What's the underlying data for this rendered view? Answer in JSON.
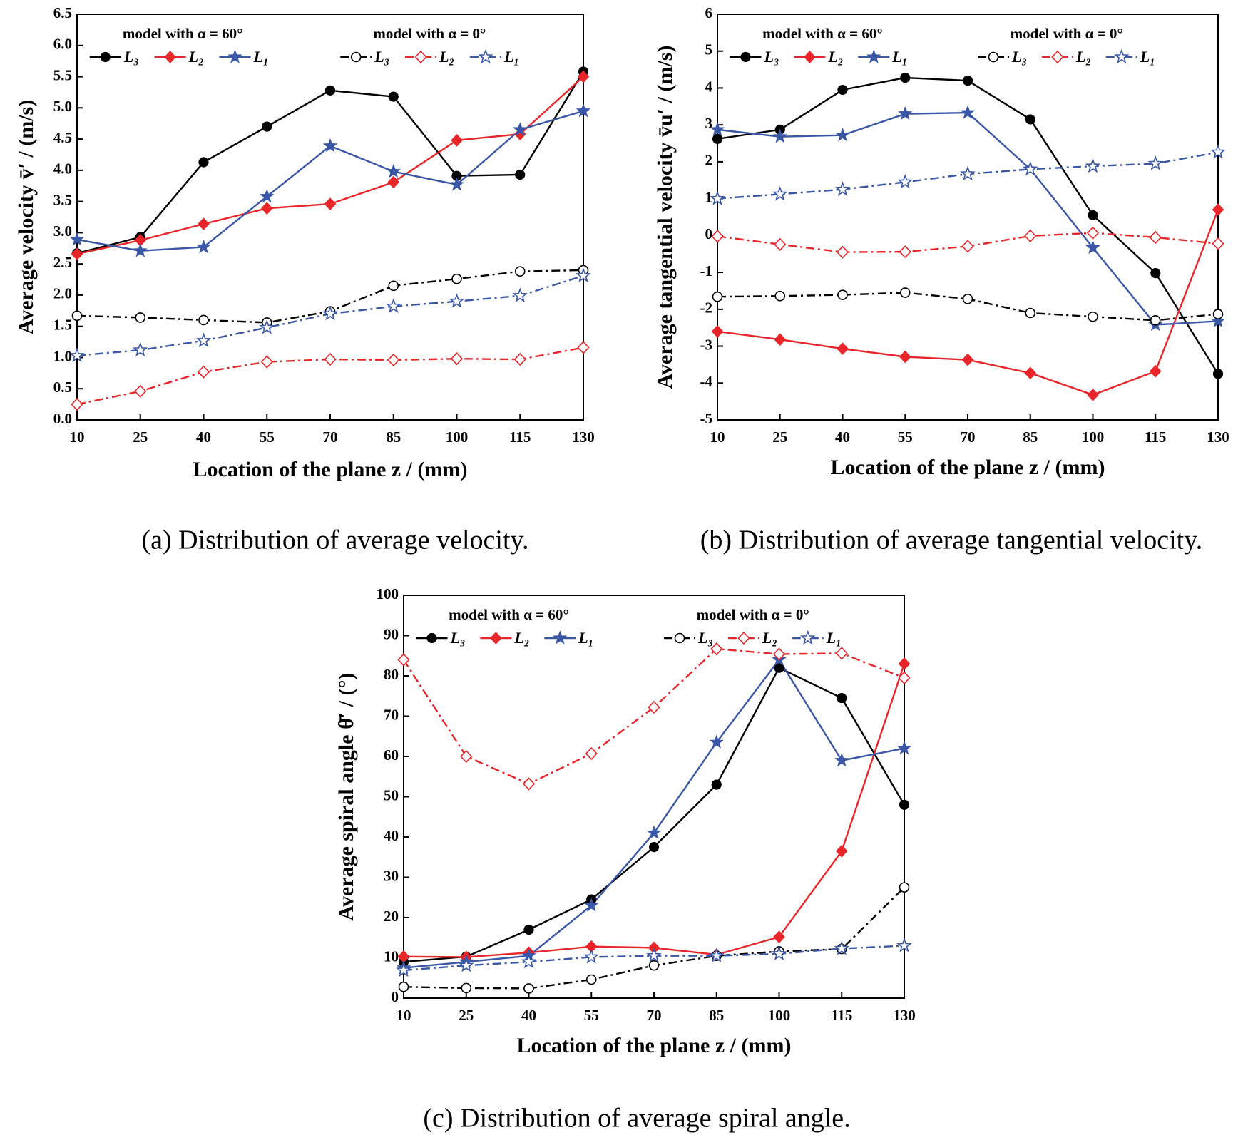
{
  "chart_data": [
    {
      "type": "line",
      "caption": "(a) Distribution of average velocity.",
      "x_label": "Location of the plane z / (mm)",
      "y_label": "Average velocity v̄′ / (m/s)",
      "x": [
        10,
        25,
        40,
        55,
        70,
        85,
        100,
        115,
        130
      ],
      "xlim": [
        10,
        130
      ],
      "xticks": [
        10,
        25,
        40,
        55,
        70,
        85,
        100,
        115,
        130
      ],
      "ylim": [
        0,
        6.5
      ],
      "yticks": [
        {
          "value": 0,
          "label": "0.0"
        },
        0.5,
        {
          "value": 1,
          "label": "1.0"
        },
        1.5,
        {
          "value": 2,
          "label": "2.0"
        },
        2.5,
        {
          "value": 3,
          "label": "3.0"
        },
        3.5,
        {
          "value": 4,
          "label": "4.0"
        },
        4.5,
        {
          "value": 5,
          "label": "5.0"
        },
        5.5,
        {
          "value": 6,
          "label": "6.0"
        },
        6.5
      ],
      "legend_groups": [
        "model with α = 60°",
        "model with α = 0°"
      ],
      "series": [
        {
          "name": "L₃",
          "group": 0,
          "color": "#000000",
          "marker": "filled-circle",
          "dash": "solid",
          "values": [
            2.67,
            2.93,
            4.13,
            4.7,
            5.28,
            5.18,
            3.91,
            3.93,
            5.58
          ]
        },
        {
          "name": "L₂",
          "group": 0,
          "color": "#e8262a",
          "marker": "filled-diamond",
          "dash": "solid",
          "values": [
            2.66,
            2.88,
            3.14,
            3.39,
            3.46,
            3.81,
            4.48,
            4.58,
            5.5
          ]
        },
        {
          "name": "L₁",
          "group": 0,
          "color": "#3a56a6",
          "marker": "filled-star",
          "dash": "solid",
          "values": [
            2.89,
            2.71,
            2.77,
            3.58,
            4.39,
            3.98,
            3.77,
            4.65,
            4.95
          ]
        },
        {
          "name": "L₃",
          "group": 1,
          "color": "#000000",
          "marker": "open-circle",
          "dash": "dashdot",
          "values": [
            1.67,
            1.64,
            1.6,
            1.56,
            1.74,
            2.15,
            2.26,
            2.38,
            2.4
          ]
        },
        {
          "name": "L₂",
          "group": 1,
          "color": "#e8262a",
          "marker": "open-diamond",
          "dash": "dashdot",
          "values": [
            0.25,
            0.46,
            0.77,
            0.93,
            0.97,
            0.96,
            0.98,
            0.97,
            1.16
          ]
        },
        {
          "name": "L₁",
          "group": 1,
          "color": "#3a56a6",
          "marker": "open-star",
          "dash": "dashdot",
          "values": [
            1.03,
            1.12,
            1.27,
            1.48,
            1.7,
            1.82,
            1.9,
            1.99,
            2.31
          ]
        }
      ]
    },
    {
      "type": "line",
      "caption": "(b) Distribution of average tangential velocity.",
      "x_label": "Location of the plane z / (mm)",
      "y_label": "Average tangential velocity v̄u′ / (m/s)",
      "x": [
        10,
        25,
        40,
        55,
        70,
        85,
        100,
        115,
        130
      ],
      "xlim": [
        10,
        130
      ],
      "xticks": [
        10,
        25,
        40,
        55,
        70,
        85,
        100,
        115,
        130
      ],
      "ylim": [
        -5,
        6
      ],
      "yticks": [
        -5,
        -4,
        -3,
        -2,
        -1,
        0,
        1,
        2,
        3,
        4,
        5,
        6
      ],
      "legend_groups": [
        "model with α = 60°",
        "model with α = 0°"
      ],
      "series": [
        {
          "name": "L₃",
          "group": 0,
          "color": "#000000",
          "marker": "filled-circle",
          "dash": "solid",
          "values": [
            2.62,
            2.87,
            3.95,
            4.28,
            4.2,
            3.15,
            0.55,
            -1.02,
            -3.75
          ]
        },
        {
          "name": "L₂",
          "group": 0,
          "color": "#e8262a",
          "marker": "filled-diamond",
          "dash": "solid",
          "values": [
            -2.6,
            -2.82,
            -3.07,
            -3.29,
            -3.37,
            -3.73,
            -4.32,
            -3.68,
            0.7
          ]
        },
        {
          "name": "L₁",
          "group": 0,
          "color": "#3a56a6",
          "marker": "filled-star",
          "dash": "solid",
          "values": [
            2.87,
            2.68,
            2.72,
            3.3,
            3.33,
            1.8,
            -0.33,
            -2.42,
            -2.32
          ]
        },
        {
          "name": "L₃",
          "group": 1,
          "color": "#000000",
          "marker": "open-circle",
          "dash": "dashdot",
          "values": [
            -1.66,
            -1.64,
            -1.61,
            -1.55,
            -1.72,
            -2.1,
            -2.2,
            -2.3,
            -2.13
          ]
        },
        {
          "name": "L₂",
          "group": 1,
          "color": "#e8262a",
          "marker": "open-diamond",
          "dash": "dashdot",
          "values": [
            -0.02,
            -0.24,
            -0.45,
            -0.44,
            -0.29,
            -0.01,
            0.07,
            -0.05,
            -0.22
          ]
        },
        {
          "name": "L₁",
          "group": 1,
          "color": "#3a56a6",
          "marker": "open-star",
          "dash": "dashdot",
          "values": [
            1.0,
            1.12,
            1.25,
            1.45,
            1.67,
            1.8,
            1.88,
            1.95,
            2.26
          ]
        }
      ]
    },
    {
      "type": "line",
      "caption": "(c) Distribution of average spiral angle.",
      "x_label": "Location of the plane z / (mm)",
      "y_label": "Average spiral angle θ̄′ / (°)",
      "x": [
        10,
        25,
        40,
        55,
        70,
        85,
        100,
        115,
        130
      ],
      "xlim": [
        10,
        130
      ],
      "xticks": [
        10,
        25,
        40,
        55,
        70,
        85,
        100,
        115,
        130
      ],
      "ylim": [
        0,
        100
      ],
      "yticks": [
        0,
        10,
        20,
        30,
        40,
        50,
        60,
        70,
        80,
        90,
        100
      ],
      "legend_groups": [
        "model with α = 60°",
        "model with α = 0°"
      ],
      "series": [
        {
          "name": "L₃",
          "group": 0,
          "color": "#000000",
          "marker": "filled-circle",
          "dash": "solid",
          "values": [
            9,
            10.3,
            17,
            24.5,
            37.5,
            53,
            82,
            74.5,
            48
          ]
        },
        {
          "name": "L₂",
          "group": 0,
          "color": "#e8262a",
          "marker": "filled-diamond",
          "dash": "solid",
          "values": [
            10.3,
            10.2,
            11.3,
            12.8,
            12.5,
            10.8,
            15.2,
            36.5,
            83
          ]
        },
        {
          "name": "L₁",
          "group": 0,
          "color": "#3a56a6",
          "marker": "filled-star",
          "dash": "solid",
          "values": [
            7.5,
            9,
            10.5,
            23,
            41,
            63.5,
            84,
            59,
            62
          ]
        },
        {
          "name": "L₃",
          "group": 1,
          "color": "#000000",
          "marker": "open-circle",
          "dash": "dashdot",
          "values": [
            2.8,
            2.5,
            2.4,
            4.6,
            8.1,
            10.5,
            11.6,
            12.2,
            27.5
          ]
        },
        {
          "name": "L₂",
          "group": 1,
          "color": "#e8262a",
          "marker": "open-diamond",
          "dash": "dashdot",
          "values": [
            84,
            60,
            53.2,
            60.7,
            72.2,
            86.7,
            85.4,
            85.6,
            79.5
          ]
        },
        {
          "name": "L₁",
          "group": 1,
          "color": "#3a56a6",
          "marker": "open-star",
          "dash": "dashdot",
          "values": [
            6.9,
            8.1,
            9,
            10.2,
            10.5,
            10.5,
            11,
            12.3,
            13
          ]
        }
      ]
    }
  ]
}
